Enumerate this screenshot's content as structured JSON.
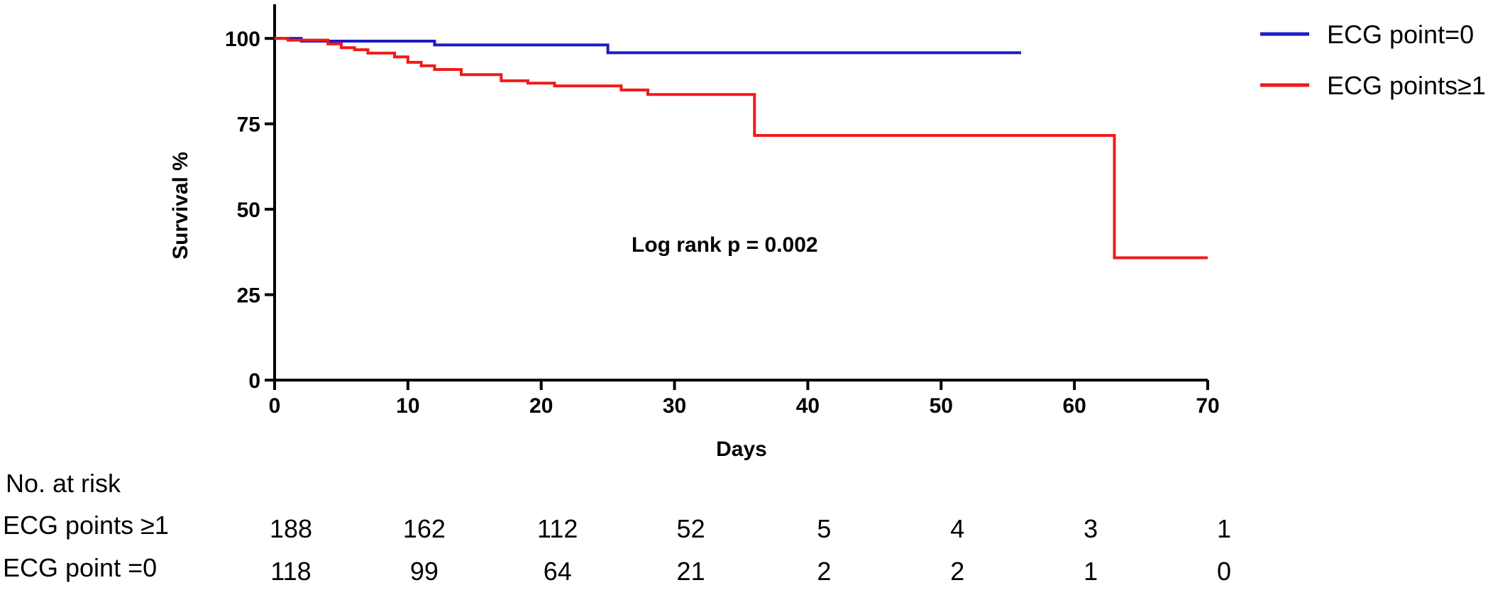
{
  "chart_data": {
    "type": "line",
    "subtype": "kaplan-meier-step",
    "title": "",
    "xlabel": "Days",
    "ylabel": "Survival %",
    "xlim": [
      0,
      70
    ],
    "ylim": [
      0,
      110
    ],
    "xticks": [
      0,
      10,
      20,
      30,
      40,
      50,
      60,
      70
    ],
    "yticks": [
      0,
      25,
      50,
      75,
      100
    ],
    "grid": false,
    "legend_position": "top-right",
    "annotation": "Log rank p = 0.002",
    "series": [
      {
        "name": "ECG point=0",
        "color": "#1c1cc4",
        "x": [
          0,
          2,
          12,
          25,
          56
        ],
        "y": [
          100,
          99.2,
          98.1,
          95.8,
          95.8
        ]
      },
      {
        "name": "ECG points≥1",
        "color": "#f01a1a",
        "x": [
          0,
          1,
          4,
          5,
          6,
          7,
          9,
          10,
          11,
          12,
          14,
          17,
          19,
          21,
          26,
          28,
          36,
          63,
          70
        ],
        "y": [
          100,
          99.5,
          98.4,
          97.3,
          96.7,
          95.7,
          94.6,
          93.0,
          92.0,
          90.9,
          89.4,
          87.6,
          86.9,
          86.1,
          84.9,
          83.6,
          71.6,
          35.8,
          35.8
        ]
      }
    ],
    "risk_table": {
      "title": "No. at risk",
      "times": [
        0,
        10,
        20,
        30,
        40,
        50,
        60,
        70
      ],
      "rows": [
        {
          "label": "ECG points ≥1",
          "values": [
            "188",
            "162",
            "112",
            "52",
            "5",
            "4",
            "3",
            "1"
          ]
        },
        {
          "label": "ECG point  =0",
          "values": [
            "118",
            "99",
            "64",
            "21",
            "2",
            "2",
            "1",
            "0"
          ]
        }
      ]
    }
  }
}
